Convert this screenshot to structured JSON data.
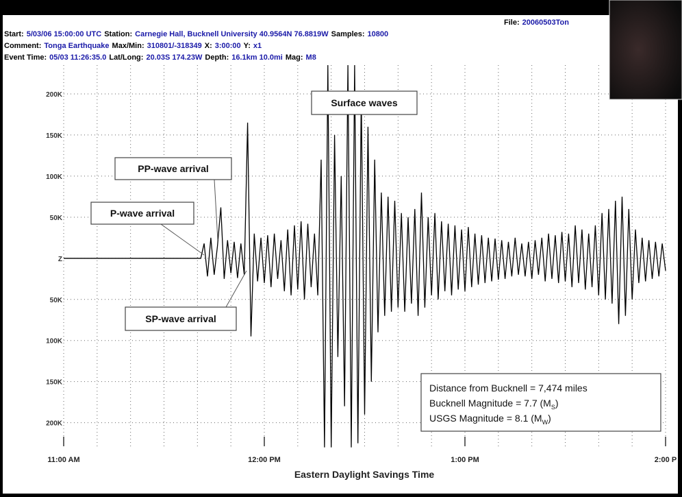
{
  "chart_data": {
    "type": "line",
    "header": [
      [
        "File:",
        "20060503Ton"
      ],
      [
        "Start:",
        "5/03/06 15:00:00 UTC",
        "Station:",
        "Carnegie Hall, Bucknell University 40.9564N 76.8819W",
        "Samples:",
        "10800"
      ],
      [
        "Comment:",
        "Tonga Earthquake",
        "Max/Min:",
        "310801/-318349",
        "X:",
        "3:00:00",
        "Y:",
        "x1"
      ],
      [
        "Event Time:",
        "05/03 11:26:35.0",
        "Lat/Long:",
        "20.03S 174.23W",
        "Depth:",
        "16.1km 10.0mi",
        "Mag:",
        "M8"
      ]
    ],
    "x_label": "Eastern Daylight Savings Time",
    "annotations": [
      "Surface waves",
      "PP-wave arrival",
      "P-wave arrival",
      "SP-wave arrival"
    ],
    "info": [
      [
        "Distance from Bucknell = 7,474 miles"
      ],
      [
        "Bucknell Magnitude = 7.7 (M",
        "S",
        ")"
      ],
      [
        "USGS Magnitude = 8.1 (M",
        "W",
        ")"
      ]
    ],
    "color": "#000000",
    "grid": true,
    "xlim": [
      0,
      180
    ],
    "xticks": [
      {
        "value": 0,
        "label": "11:00 AM"
      },
      {
        "value": 60,
        "label": "12:00 PM"
      },
      {
        "value": 120,
        "label": "1:00 PM"
      },
      {
        "value": 180,
        "label": "2:00 P"
      }
    ],
    "xminorticks": [
      10,
      20,
      30,
      40,
      50,
      70,
      80,
      90,
      100,
      110,
      130,
      140,
      150,
      160,
      170
    ],
    "ylim": [
      -232000,
      235000
    ],
    "yticks": [
      {
        "value": 200000,
        "label": "200K"
      },
      {
        "value": 150000,
        "label": "150K"
      },
      {
        "value": 100000,
        "label": "100K"
      },
      {
        "value": 50000,
        "label": "50K"
      },
      {
        "value": 0,
        "label": "Z"
      },
      {
        "value": -50000,
        "label": "50K"
      },
      {
        "value": -100000,
        "label": "100K"
      },
      {
        "value": -150000,
        "label": "150K"
      },
      {
        "value": -200000,
        "label": "200K"
      }
    ],
    "x": [
      0,
      41,
      42,
      43,
      44,
      45,
      46,
      47,
      48,
      49,
      50,
      51,
      52,
      53,
      54,
      55,
      56,
      57,
      58,
      59,
      60,
      61,
      62,
      63,
      64,
      65,
      66,
      67,
      68,
      69,
      70,
      71,
      72,
      73,
      74,
      75,
      76,
      77,
      78,
      79,
      80,
      81,
      82,
      83,
      84,
      85,
      86,
      87,
      88,
      89,
      90,
      91,
      92,
      93,
      94,
      95,
      96,
      97,
      98,
      99,
      100,
      101,
      102,
      103,
      104,
      105,
      106,
      107,
      108,
      109,
      110,
      111,
      112,
      113,
      114,
      115,
      116,
      117,
      118,
      119,
      120,
      121,
      122,
      123,
      124,
      125,
      126,
      127,
      128,
      129,
      130,
      131,
      132,
      133,
      134,
      135,
      136,
      137,
      138,
      139,
      140,
      141,
      142,
      143,
      144,
      145,
      146,
      147,
      148,
      149,
      150,
      151,
      152,
      153,
      154,
      155,
      156,
      157,
      158,
      159,
      160,
      161,
      162,
      163,
      164,
      165,
      166,
      167,
      168,
      169,
      170,
      171,
      172,
      173,
      174,
      175,
      176,
      177,
      178,
      179,
      180
    ],
    "values": [
      0,
      0,
      18000,
      -22000,
      25000,
      -20000,
      15000,
      62000,
      -25000,
      22000,
      -18000,
      20000,
      -24000,
      18000,
      -20000,
      165000,
      -95000,
      30000,
      -28000,
      25000,
      -30000,
      28000,
      -35000,
      30000,
      -25000,
      22000,
      -40000,
      35000,
      -45000,
      40000,
      -38000,
      45000,
      -50000,
      42000,
      -35000,
      30000,
      -45000,
      120000,
      -230000,
      235000,
      -230000,
      150000,
      -120000,
      100000,
      -180000,
      235000,
      -230000,
      235000,
      -225000,
      200000,
      -190000,
      160000,
      -150000,
      120000,
      -90000,
      80000,
      -70000,
      75000,
      -65000,
      70000,
      -60000,
      55000,
      -65000,
      50000,
      -55000,
      60000,
      -70000,
      80000,
      -60000,
      50000,
      -45000,
      55000,
      -50000,
      45000,
      -40000,
      42000,
      -45000,
      40000,
      -38000,
      35000,
      -40000,
      38000,
      -35000,
      30000,
      -32000,
      28000,
      -30000,
      25000,
      -28000,
      24000,
      -26000,
      22000,
      -25000,
      20000,
      -22000,
      25000,
      -20000,
      18000,
      -22000,
      20000,
      -25000,
      22000,
      -20000,
      25000,
      -28000,
      30000,
      -25000,
      28000,
      -30000,
      32000,
      -28000,
      30000,
      -35000,
      40000,
      -30000,
      35000,
      -38000,
      30000,
      -35000,
      40000,
      -45000,
      55000,
      -50000,
      60000,
      -55000,
      70000,
      -80000,
      75000,
      -70000,
      60000,
      -50000,
      35000,
      -30000,
      25000,
      -28000,
      22000,
      -25000,
      20000,
      -22000,
      18000,
      -15000
    ]
  }
}
